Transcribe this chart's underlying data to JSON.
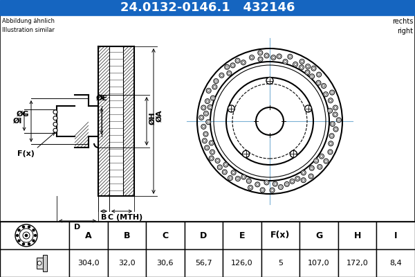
{
  "title_text": "24.0132-0146.1   432146",
  "title_bg": "#1565c0",
  "title_color": "#ffffff",
  "subtitle_left": "Abbildung ähnlich\nIllustration similar",
  "subtitle_right": "rechts\nright",
  "table_headers": [
    "A",
    "B",
    "C",
    "D",
    "E",
    "F(x)",
    "G",
    "H",
    "I"
  ],
  "table_values": [
    "304,0",
    "32,0",
    "30,6",
    "56,7",
    "126,0",
    "5",
    "107,0",
    "172,0",
    "8,4"
  ],
  "bg_color": "#ffffff",
  "line_color": "#000000",
  "hatch_color": "#444444",
  "dim_line_color": "#000000"
}
